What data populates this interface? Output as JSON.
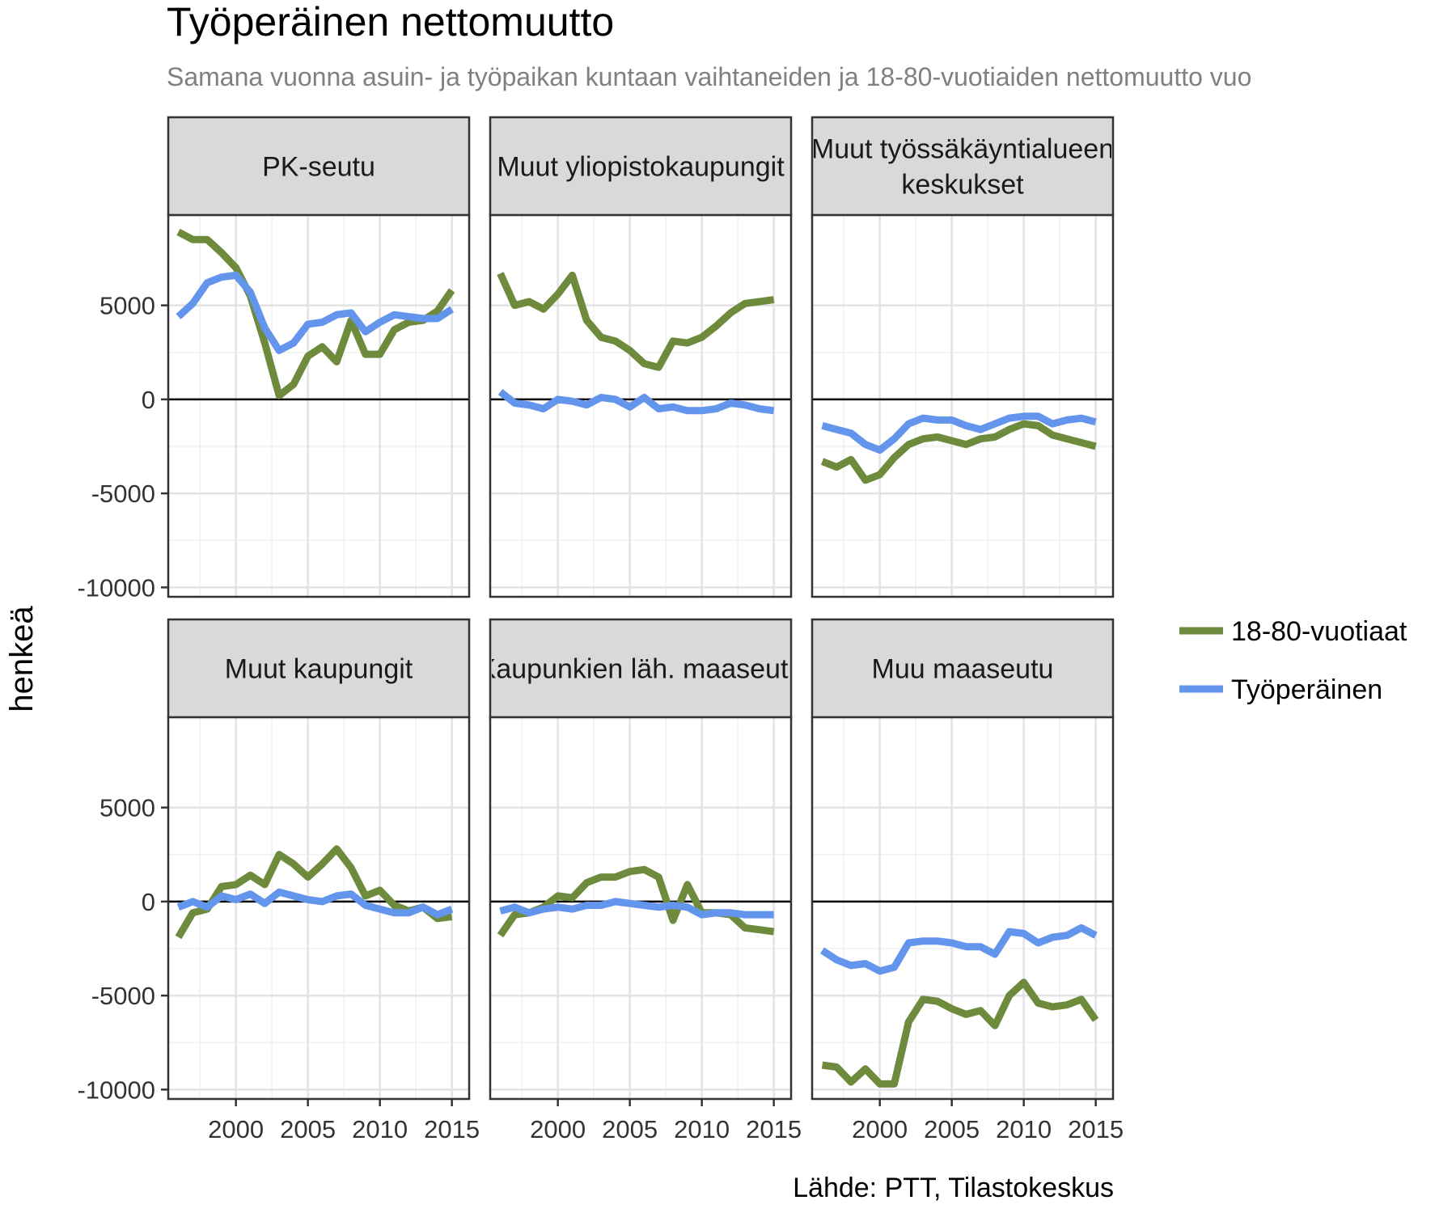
{
  "chart_data": {
    "type": "line",
    "title": "Työperäinen nettomuutto",
    "subtitle": "Samana vuonna asuin- ja työpaikan kuntaan vaihtaneiden ja 18-80-vuotiaiden nettomuutto vuo",
    "ylabel": "henkeä",
    "xlabel": "",
    "caption": "Lähde: PTT, Tilastokeskus",
    "xlim": [
      1995.3,
      2016.2
    ],
    "ylim": [
      -10500,
      9800
    ],
    "x_ticks": [
      2000,
      2005,
      2010,
      2015
    ],
    "y_ticks": [
      -10000,
      -5000,
      0,
      5000
    ],
    "zero_line": true,
    "grid": true,
    "legend_position": "right",
    "colors": {
      "18-80-vuotiaat": "#6e8b3d",
      "Työperäinen": "#6495ed"
    },
    "years": [
      1996,
      1997,
      1998,
      1999,
      2000,
      2001,
      2002,
      2003,
      2004,
      2005,
      2006,
      2007,
      2008,
      2009,
      2010,
      2011,
      2012,
      2013,
      2014,
      2015
    ],
    "legend": [
      {
        "name": "18-80-vuotiaat",
        "color": "#6e8b3d"
      },
      {
        "name": "Työperäinen",
        "color": "#6495ed"
      }
    ],
    "panels": [
      {
        "name": "PK-seutu",
        "series": [
          {
            "name": "18-80-vuotiaat",
            "values": [
              8900,
              8500,
              8500,
              7800,
              7000,
              5500,
              3000,
              200,
              800,
              2300,
              2800,
              2000,
              4200,
              2400,
              2400,
              3700,
              4100,
              4200,
              4700,
              5800
            ]
          },
          {
            "name": "Työperäinen",
            "values": [
              4400,
              5100,
              6200,
              6500,
              6600,
              5700,
              3800,
              2600,
              3000,
              4000,
              4100,
              4500,
              4600,
              3600,
              4100,
              4500,
              4400,
              4300,
              4300,
              4800
            ]
          }
        ]
      },
      {
        "name": "Muut yliopistokaupungit",
        "series": [
          {
            "name": "18-80-vuotiaat",
            "values": [
              6700,
              5000,
              5200,
              4800,
              5600,
              6600,
              4200,
              3300,
              3100,
              2600,
              1900,
              1700,
              3100,
              3000,
              3300,
              3900,
              4600,
              5100,
              5200,
              5300
            ]
          },
          {
            "name": "Työperäinen",
            "values": [
              400,
              -200,
              -300,
              -500,
              0,
              -100,
              -300,
              100,
              0,
              -400,
              100,
              -500,
              -400,
              -600,
              -600,
              -500,
              -200,
              -300,
              -500,
              -600
            ]
          }
        ]
      },
      {
        "name": "Muut työssäkäyntialueen keskukset",
        "series": [
          {
            "name": "18-80-vuotiaat",
            "values": [
              -3300,
              -3600,
              -3200,
              -4300,
              -4000,
              -3100,
              -2400,
              -2100,
              -2000,
              -2200,
              -2400,
              -2100,
              -2000,
              -1600,
              -1300,
              -1400,
              -1900,
              -2100,
              -2300,
              -2500
            ]
          },
          {
            "name": "Työperäinen",
            "values": [
              -1400,
              -1600,
              -1800,
              -2400,
              -2700,
              -2100,
              -1300,
              -1000,
              -1100,
              -1100,
              -1400,
              -1600,
              -1300,
              -1000,
              -900,
              -900,
              -1300,
              -1100,
              -1000,
              -1200
            ]
          }
        ]
      },
      {
        "name": "Muut kaupungit",
        "series": [
          {
            "name": "18-80-vuotiaat",
            "values": [
              -1900,
              -600,
              -400,
              800,
              900,
              1400,
              900,
              2500,
              2000,
              1300,
              2000,
              2800,
              1800,
              300,
              600,
              -200,
              -500,
              -300,
              -900,
              -800
            ]
          },
          {
            "name": "Työperäinen",
            "values": [
              -300,
              0,
              -300,
              300,
              100,
              400,
              -100,
              500,
              300,
              100,
              0,
              300,
              400,
              -200,
              -400,
              -600,
              -600,
              -300,
              -700,
              -400
            ]
          }
        ]
      },
      {
        "name": "Kaupunkien läh. maaseutu",
        "series": [
          {
            "name": "18-80-vuotiaat",
            "values": [
              -1800,
              -700,
              -600,
              -300,
              300,
              200,
              1000,
              1300,
              1300,
              1600,
              1700,
              1300,
              -1000,
              900,
              -600,
              -600,
              -700,
              -1400,
              -1500,
              -1600
            ]
          },
          {
            "name": "Työperäinen",
            "values": [
              -500,
              -300,
              -600,
              -400,
              -300,
              -400,
              -200,
              -200,
              0,
              -100,
              -200,
              -300,
              -200,
              -300,
              -700,
              -600,
              -600,
              -700,
              -700,
              -700
            ]
          }
        ]
      },
      {
        "name": "Muu maaseutu",
        "series": [
          {
            "name": "18-80-vuotiaat",
            "values": [
              -8700,
              -8800,
              -9600,
              -8900,
              -9700,
              -9700,
              -6400,
              -5200,
              -5300,
              -5700,
              -6000,
              -5800,
              -6600,
              -5000,
              -4300,
              -5400,
              -5600,
              -5500,
              -5200,
              -6300
            ]
          },
          {
            "name": "Työperäinen",
            "values": [
              -2600,
              -3100,
              -3400,
              -3300,
              -3700,
              -3500,
              -2200,
              -2100,
              -2100,
              -2200,
              -2400,
              -2400,
              -2800,
              -1600,
              -1700,
              -2200,
              -1900,
              -1800,
              -1400,
              -1800
            ]
          }
        ]
      }
    ]
  }
}
